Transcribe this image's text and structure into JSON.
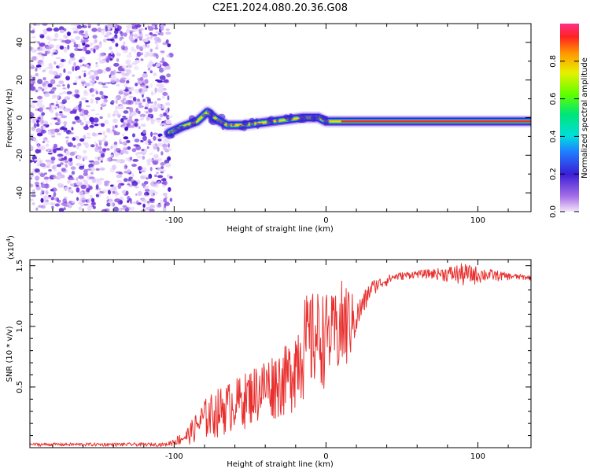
{
  "title": "C2E1.2024.080.20.36.G08",
  "chart_data": [
    {
      "type": "heatmap",
      "xlabel": "Height of straight line (km)",
      "ylabel": "Frequency (Hz)",
      "xlim": [
        -195,
        135
      ],
      "ylim": [
        -50,
        50
      ],
      "x_ticks": [
        -100,
        0,
        100
      ],
      "y_ticks": [
        -40,
        -20,
        0,
        20,
        40
      ],
      "x_tick_labels": [
        "-100",
        "0",
        "100"
      ],
      "y_tick_labels": [
        "-40",
        "-20",
        "0",
        "20",
        "40"
      ],
      "noise_region_x": [
        -195,
        -102
      ],
      "signal_trace": [
        {
          "x": -103,
          "y": -8
        },
        {
          "x": -95,
          "y": -5
        },
        {
          "x": -85,
          "y": -2
        },
        {
          "x": -78,
          "y": 3
        },
        {
          "x": -72,
          "y": -1
        },
        {
          "x": -65,
          "y": -4
        },
        {
          "x": -55,
          "y": -4
        },
        {
          "x": -45,
          "y": -3
        },
        {
          "x": -35,
          "y": -2
        },
        {
          "x": -25,
          "y": -1
        },
        {
          "x": -15,
          "y": 0
        },
        {
          "x": -5,
          "y": 0
        },
        {
          "x": 0,
          "y": -2
        },
        {
          "x": 10,
          "y": -2
        },
        {
          "x": 50,
          "y": -2
        },
        {
          "x": 100,
          "y": -2
        },
        {
          "x": 135,
          "y": -2
        }
      ],
      "colorbar": {
        "label": "Normalized spectral amplitude",
        "range": [
          0,
          1
        ],
        "ticks": [
          0.0,
          0.2,
          0.4,
          0.6,
          0.8
        ],
        "tick_labels": [
          "0.0",
          "0.2",
          "0.4",
          "0.6",
          "0.8"
        ]
      }
    },
    {
      "type": "line",
      "xlabel": "Height of straight line (km)",
      "ylabel": "SNR (10 * v/v)",
      "y_scale_label": "(x10",
      "y_scale_exponent": "4",
      "y_scale_close": ")",
      "xlim": [
        -195,
        135
      ],
      "ylim": [
        0,
        1.55
      ],
      "x_ticks": [
        -100,
        0,
        100
      ],
      "y_ticks": [
        0.5,
        1.0,
        1.5
      ],
      "x_tick_labels": [
        "-100",
        "0",
        "100"
      ],
      "y_tick_labels": [
        "0.5",
        "1.0",
        "1.5"
      ],
      "color": "#e8312f",
      "series": [
        {
          "values_envelope": [
            {
              "x": -195,
              "lo": 0.01,
              "hi": 0.04
            },
            {
              "x": -105,
              "lo": 0.01,
              "hi": 0.04
            },
            {
              "x": -92,
              "lo": 0.02,
              "hi": 0.15
            },
            {
              "x": -80,
              "lo": 0.05,
              "hi": 0.4
            },
            {
              "x": -70,
              "lo": 0.08,
              "hi": 0.5
            },
            {
              "x": -55,
              "lo": 0.15,
              "hi": 0.6
            },
            {
              "x": -40,
              "lo": 0.2,
              "hi": 0.75
            },
            {
              "x": -25,
              "lo": 0.25,
              "hi": 0.85
            },
            {
              "x": -15,
              "lo": 0.35,
              "hi": 1.25
            },
            {
              "x": -5,
              "lo": 0.45,
              "hi": 1.3
            },
            {
              "x": 5,
              "lo": 0.55,
              "hi": 1.25
            },
            {
              "x": 12,
              "lo": 0.5,
              "hi": 1.42
            },
            {
              "x": 20,
              "lo": 0.9,
              "hi": 1.2
            },
            {
              "x": 30,
              "lo": 1.25,
              "hi": 1.38
            },
            {
              "x": 45,
              "lo": 1.37,
              "hi": 1.44
            },
            {
              "x": 60,
              "lo": 1.4,
              "hi": 1.46
            },
            {
              "x": 75,
              "lo": 1.38,
              "hi": 1.48
            },
            {
              "x": 90,
              "lo": 1.32,
              "hi": 1.52
            },
            {
              "x": 105,
              "lo": 1.36,
              "hi": 1.48
            },
            {
              "x": 120,
              "lo": 1.38,
              "hi": 1.44
            },
            {
              "x": 135,
              "lo": 1.38,
              "hi": 1.42
            }
          ]
        }
      ]
    }
  ]
}
